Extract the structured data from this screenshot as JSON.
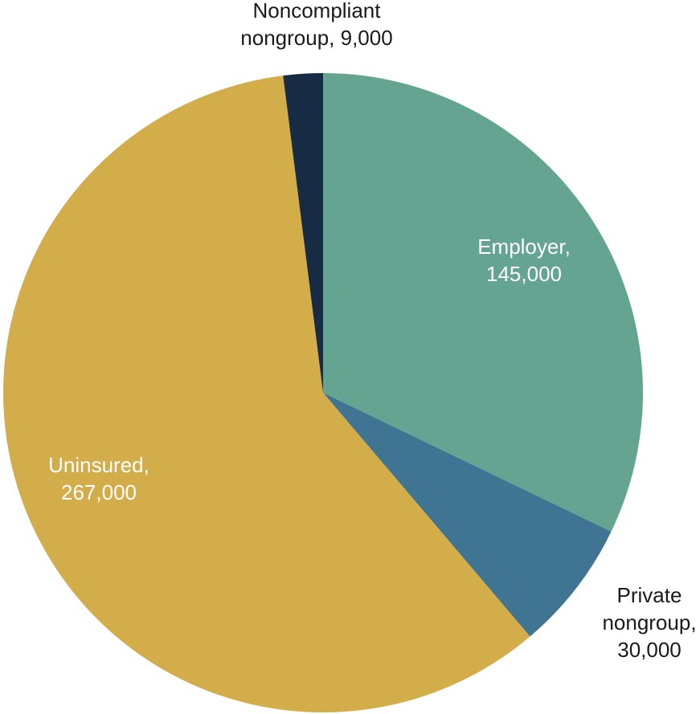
{
  "chart_data": {
    "type": "pie",
    "title": "",
    "slices": [
      {
        "category": "Employer",
        "value": 145000,
        "value_label": "145,000",
        "color": "#65a491",
        "label_color": "#ffffff",
        "label_lines": [
          "Employer,",
          "145,000"
        ]
      },
      {
        "category": "Private nongroup",
        "value": 30000,
        "value_label": "30,000",
        "color": "#3f7492",
        "label_color": "#1a1a1a",
        "label_lines": [
          "Private",
          "nongroup,",
          "30,000"
        ]
      },
      {
        "category": "Uninsured",
        "value": 267000,
        "value_label": "267,000",
        "color": "#d4ad4b",
        "label_color": "#ffffff",
        "label_lines": [
          "Uninsured,",
          "267,000"
        ]
      },
      {
        "category": "Noncompliant nongroup",
        "value": 9000,
        "value_label": "9,000",
        "color": "#172b44",
        "label_color": "#1a1a1a",
        "label_lines": [
          "Noncompliant",
          "nongroup,  9,000"
        ]
      }
    ],
    "start": "12 o'clock",
    "direction": "clockwise",
    "legend": "none"
  }
}
